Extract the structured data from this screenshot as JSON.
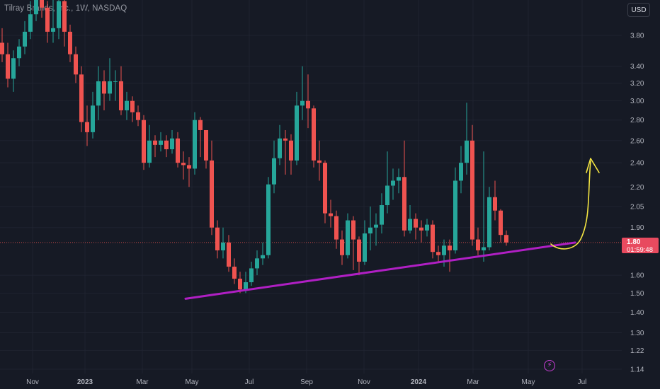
{
  "header": {
    "title": "Tilray Brands, Inc., 1W, NASDAQ",
    "currency": "USD"
  },
  "price_badge": {
    "price": "1.80",
    "countdown": "01:59:48"
  },
  "icons": {
    "bottom": "lightning-bolt-icon"
  },
  "colors": {
    "background": "#161a25",
    "up": "#26a69a",
    "down": "#ef5350",
    "trendline": "#b01fc4",
    "drawing": "#f5e642",
    "price_line": "#ef5350"
  },
  "chart_data": {
    "type": "candlestick",
    "title": "Tilray Brands, Inc., 1W, NASDAQ",
    "y_scale": "log",
    "y_ticks": [
      3.8,
      3.4,
      3.2,
      3.0,
      2.8,
      2.6,
      2.4,
      2.2,
      2.05,
      1.9,
      1.6,
      1.5,
      1.4,
      1.3,
      1.22,
      1.14
    ],
    "y_tick_labels": [
      "3.80",
      "3.40",
      "3.20",
      "3.00",
      "2.80",
      "2.60",
      "2.40",
      "2.20",
      "2.05",
      "1.90",
      "1.60",
      "1.50",
      "1.40",
      "1.30",
      "1.22",
      "1.14"
    ],
    "x_tick_labels": [
      "Nov",
      "2023",
      "Mar",
      "May",
      "Jul",
      "Sep",
      "Nov",
      "2024",
      "Mar",
      "May",
      "Jul"
    ],
    "last_price": 1.8,
    "candles": [
      [
        3.7,
        3.55,
        3.9,
        3.45
      ],
      [
        3.55,
        3.25,
        3.7,
        3.15
      ],
      [
        3.25,
        3.5,
        3.6,
        3.1
      ],
      [
        3.5,
        3.65,
        3.75,
        3.4
      ],
      [
        3.65,
        3.85,
        4.0,
        3.55
      ],
      [
        3.85,
        4.1,
        4.3,
        3.75
      ],
      [
        4.1,
        4.35,
        4.5,
        4.0
      ],
      [
        4.35,
        4.2,
        4.6,
        4.05
      ],
      [
        4.2,
        3.85,
        4.3,
        3.7
      ],
      [
        3.85,
        3.9,
        4.6,
        3.7
      ],
      [
        3.9,
        4.3,
        4.7,
        3.75
      ],
      [
        4.3,
        3.85,
        4.4,
        3.65
      ],
      [
        3.85,
        3.55,
        3.95,
        3.45
      ],
      [
        3.55,
        3.3,
        3.65,
        3.2
      ],
      [
        3.3,
        2.78,
        3.4,
        2.68
      ],
      [
        2.78,
        2.68,
        2.95,
        2.55
      ],
      [
        2.68,
        2.95,
        3.1,
        2.62
      ],
      [
        2.95,
        3.22,
        3.4,
        2.8
      ],
      [
        3.22,
        3.08,
        3.35,
        2.9
      ],
      [
        3.08,
        3.22,
        3.5,
        3.0
      ],
      [
        3.22,
        3.22,
        3.35,
        3.0
      ],
      [
        3.22,
        2.9,
        3.4,
        2.85
      ],
      [
        2.9,
        3.0,
        3.1,
        2.8
      ],
      [
        3.0,
        2.88,
        3.05,
        2.78
      ],
      [
        2.88,
        2.8,
        2.95,
        2.74
      ],
      [
        2.8,
        2.4,
        2.85,
        2.34
      ],
      [
        2.4,
        2.6,
        2.75,
        2.36
      ],
      [
        2.6,
        2.56,
        2.65,
        2.45
      ],
      [
        2.56,
        2.6,
        2.68,
        2.5
      ],
      [
        2.6,
        2.52,
        2.65,
        2.45
      ],
      [
        2.52,
        2.62,
        2.7,
        2.48
      ],
      [
        2.62,
        2.4,
        2.68,
        2.36
      ],
      [
        2.4,
        2.38,
        2.5,
        2.26
      ],
      [
        2.38,
        2.35,
        2.45,
        2.2
      ],
      [
        2.35,
        2.8,
        2.88,
        2.3
      ],
      [
        2.8,
        2.7,
        2.83,
        2.45
      ],
      [
        2.7,
        2.42,
        2.7,
        2.35
      ],
      [
        2.42,
        1.9,
        2.6,
        1.85
      ],
      [
        1.9,
        1.75,
        1.95,
        1.7
      ],
      [
        1.75,
        1.8,
        1.9,
        1.7
      ],
      [
        1.8,
        1.65,
        1.85,
        1.62
      ],
      [
        1.65,
        1.58,
        1.7,
        1.55
      ],
      [
        1.58,
        1.52,
        1.62,
        1.5
      ],
      [
        1.52,
        1.56,
        1.62,
        1.5
      ],
      [
        1.56,
        1.64,
        1.68,
        1.54
      ],
      [
        1.64,
        1.7,
        1.75,
        1.6
      ],
      [
        1.7,
        1.72,
        1.8,
        1.66
      ],
      [
        1.72,
        2.22,
        2.28,
        1.7
      ],
      [
        2.22,
        2.44,
        2.6,
        2.15
      ],
      [
        2.44,
        2.62,
        2.75,
        2.38
      ],
      [
        2.62,
        2.6,
        2.7,
        2.3
      ],
      [
        2.6,
        2.42,
        2.66,
        2.3
      ],
      [
        2.42,
        2.95,
        3.1,
        2.38
      ],
      [
        2.95,
        3.0,
        3.4,
        2.8
      ],
      [
        3.0,
        2.92,
        3.3,
        2.72
      ],
      [
        2.92,
        2.42,
        2.95,
        2.36
      ],
      [
        2.42,
        2.4,
        2.6,
        2.25
      ],
      [
        2.4,
        2.0,
        2.42,
        1.93
      ],
      [
        2.0,
        1.98,
        2.1,
        1.9
      ],
      [
        1.98,
        1.82,
        2.02,
        1.76
      ],
      [
        1.82,
        1.72,
        1.88,
        1.66
      ],
      [
        1.72,
        1.95,
        2.0,
        1.7
      ],
      [
        1.95,
        1.82,
        1.98,
        1.63
      ],
      [
        1.82,
        1.68,
        1.84,
        1.6
      ],
      [
        1.68,
        1.86,
        1.95,
        1.66
      ],
      [
        1.86,
        1.9,
        2.05,
        1.75
      ],
      [
        1.9,
        1.92,
        2.0,
        1.78
      ],
      [
        1.92,
        2.06,
        2.15,
        1.86
      ],
      [
        2.06,
        2.21,
        2.5,
        2.0
      ],
      [
        2.21,
        2.25,
        2.35,
        2.1
      ],
      [
        2.25,
        2.28,
        2.35,
        2.15
      ],
      [
        2.28,
        1.88,
        2.6,
        1.84
      ],
      [
        1.88,
        1.96,
        2.06,
        1.86
      ],
      [
        1.96,
        1.9,
        2.0,
        1.82
      ],
      [
        1.9,
        1.88,
        1.95,
        1.8
      ],
      [
        1.88,
        1.92,
        1.96,
        1.84
      ],
      [
        1.92,
        1.74,
        1.95,
        1.7
      ],
      [
        1.74,
        1.72,
        1.78,
        1.68
      ],
      [
        1.72,
        1.78,
        1.82,
        1.65
      ],
      [
        1.78,
        1.75,
        1.82,
        1.62
      ],
      [
        1.75,
        2.25,
        2.36,
        1.73
      ],
      [
        2.25,
        2.4,
        2.55,
        2.15
      ],
      [
        2.4,
        2.6,
        2.98,
        2.3
      ],
      [
        2.6,
        1.82,
        2.75,
        1.78
      ],
      [
        1.82,
        1.75,
        1.9,
        1.72
      ],
      [
        1.75,
        1.77,
        2.5,
        1.68
      ],
      [
        1.77,
        2.12,
        2.2,
        1.75
      ],
      [
        2.12,
        2.02,
        2.25,
        1.95
      ],
      [
        2.02,
        1.85,
        2.03,
        1.8
      ],
      [
        1.85,
        1.8,
        1.88,
        1.78
      ]
    ],
    "annotations": [
      {
        "type": "trendline",
        "from": [
          "2023-05",
          1.47
        ],
        "to": [
          "2024-06",
          1.8
        ]
      },
      {
        "type": "hand-drawn-arrow",
        "direction": "up",
        "target": 2.45
      }
    ]
  }
}
